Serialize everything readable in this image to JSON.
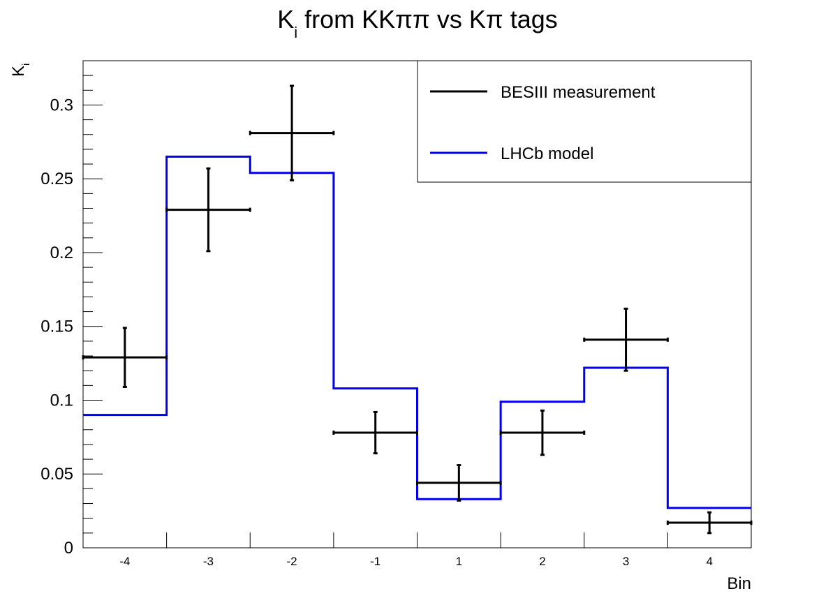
{
  "chart_data": {
    "type": "line",
    "title_main": "K",
    "title_sub": "i",
    "title_rest": " from KKππ vs Kπ tags",
    "ylabel_main": "K",
    "ylabel_sub": "i",
    "xlabel": "Bin",
    "categories": [
      "-4",
      "-3",
      "-2",
      "-1",
      "1",
      "2",
      "3",
      "4"
    ],
    "ylim": [
      0,
      0.33
    ],
    "yticks": [
      0,
      0.05,
      0.1,
      0.15,
      0.2,
      0.25,
      0.3
    ],
    "ytick_labels": [
      "0",
      "0.05",
      "0.1",
      "0.15",
      "0.2",
      "0.25",
      "0.3"
    ],
    "grid": false,
    "legend_position": "top-right",
    "series": [
      {
        "name": "BESIII measurement",
        "style": "points-with-errors",
        "color": "#000000",
        "values": [
          0.129,
          0.229,
          0.281,
          0.078,
          0.044,
          0.078,
          0.141,
          0.017
        ],
        "errors": [
          0.02,
          0.028,
          0.032,
          0.014,
          0.012,
          0.015,
          0.021,
          0.007
        ]
      },
      {
        "name": "LHCb model",
        "style": "step",
        "color": "#0000ee",
        "values": [
          0.09,
          0.265,
          0.254,
          0.108,
          0.033,
          0.099,
          0.122,
          0.027
        ]
      }
    ]
  }
}
